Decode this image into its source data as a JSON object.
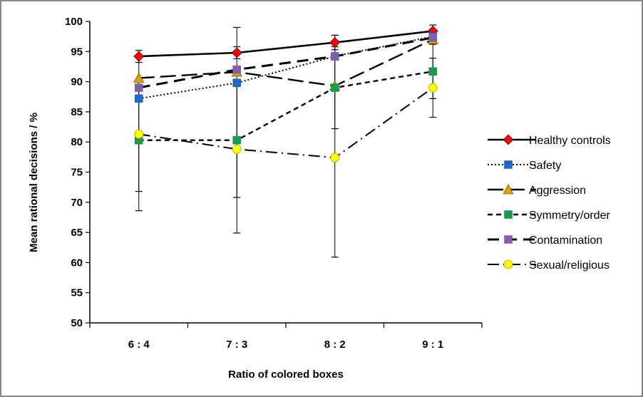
{
  "chart_data": {
    "type": "line",
    "title": "",
    "xlabel": "Ratio of colored boxes",
    "ylabel": "Mean rational decisions / %",
    "categories": [
      "6 : 4",
      "7 : 3",
      "8 : 2",
      "9 : 1"
    ],
    "ylim": [
      50,
      100
    ],
    "yticks": [
      50,
      55,
      60,
      65,
      70,
      75,
      80,
      85,
      90,
      95,
      100
    ],
    "grid": false,
    "legend_position": "right",
    "series": [
      {
        "name": "Healthy controls",
        "values": [
          94.2,
          94.8,
          96.5,
          98.4
        ],
        "err_low": [
          1.0,
          1.0,
          1.2,
          1.0
        ],
        "err_high": [
          1.0,
          1.0,
          1.2,
          1.0
        ],
        "color": "#000000",
        "marker": "diamond",
        "marker_color": "#ff0000",
        "dash": "solid"
      },
      {
        "name": "Safety",
        "values": [
          87.2,
          89.8,
          94.2,
          97.5
        ],
        "err_low": [
          0,
          0,
          0,
          0
        ],
        "err_high": [
          0,
          0,
          0,
          0
        ],
        "color": "#000000",
        "marker": "square",
        "marker_color": "#1f66c8",
        "dash": "dotted"
      },
      {
        "name": "Aggression",
        "values": [
          90.6,
          91.6,
          89.3,
          97.0
        ],
        "err_low": [
          0,
          0,
          0,
          0
        ],
        "err_high": [
          0,
          0,
          0,
          0
        ],
        "color": "#000000",
        "marker": "triangle",
        "marker_color": "#e0a000",
        "dash": "longdash"
      },
      {
        "name": "Symmetry/order",
        "values": [
          80.3,
          80.3,
          89.0,
          91.7
        ],
        "err_low": [
          8.5,
          9.5,
          6.8,
          4.5
        ],
        "err_high": [
          8.5,
          9.5,
          6.8,
          4.5
        ],
        "color": "#000000",
        "marker": "square",
        "marker_color": "#1a9a50",
        "dash": "dashed"
      },
      {
        "name": "Contamination",
        "values": [
          89.0,
          92.0,
          94.2,
          97.3
        ],
        "err_low": [
          0,
          0,
          0,
          0
        ],
        "err_high": [
          0,
          0,
          0,
          0
        ],
        "color": "#000000",
        "marker": "square",
        "marker_color": "#8060a8",
        "dash": "heavydash"
      },
      {
        "name": "Sexual/religious",
        "values": [
          81.3,
          78.8,
          77.4,
          89.0
        ],
        "err_low": [
          12.7,
          13.9,
          16.5,
          4.9
        ],
        "err_high": [
          12.7,
          20.2,
          20.3,
          4.9
        ],
        "color": "#000000",
        "marker": "circle",
        "marker_color": "#ffff00",
        "dash": "dashdot"
      }
    ]
  }
}
